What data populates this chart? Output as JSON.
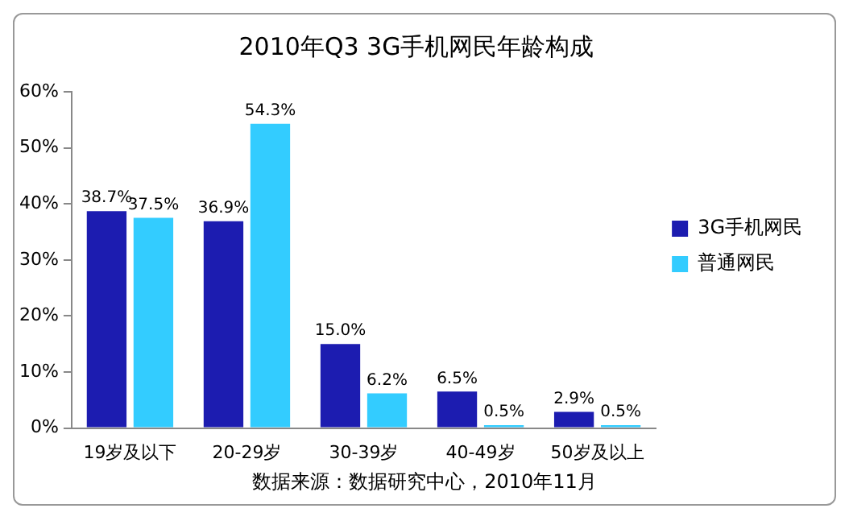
{
  "chart_data": {
    "type": "bar",
    "title": "2010年Q3 3G手机网民年龄构成",
    "categories": [
      "19岁及以下",
      "20-29岁",
      "30-39岁",
      "40-49岁",
      "50岁及以上"
    ],
    "series": [
      {
        "name": "3G手机网民",
        "color": "#1c1cb0",
        "values": [
          38.7,
          36.9,
          15.0,
          6.5,
          2.9
        ],
        "value_labels": [
          "38.7%",
          "36.9%",
          "15.0%",
          "6.5%",
          "2.9%"
        ]
      },
      {
        "name": "普通网民",
        "color": "#33ccff",
        "values": [
          37.5,
          54.3,
          6.2,
          0.5,
          0.5
        ],
        "value_labels": [
          "37.5%",
          "54.3%",
          "6.2%",
          "0.5%",
          "0.5%"
        ]
      }
    ],
    "ylim": [
      0,
      60
    ],
    "yticks": [
      {
        "value": 0,
        "label": "0%"
      },
      {
        "value": 10,
        "label": "10%"
      },
      {
        "value": 20,
        "label": "20%"
      },
      {
        "value": 30,
        "label": "30%"
      },
      {
        "value": 40,
        "label": "40%"
      },
      {
        "value": 50,
        "label": "50%"
      },
      {
        "value": 60,
        "label": "60%"
      }
    ],
    "grid": false,
    "legend": "right",
    "annotations": [
      "数据来源：数据研究中心，2010年11月"
    ]
  }
}
